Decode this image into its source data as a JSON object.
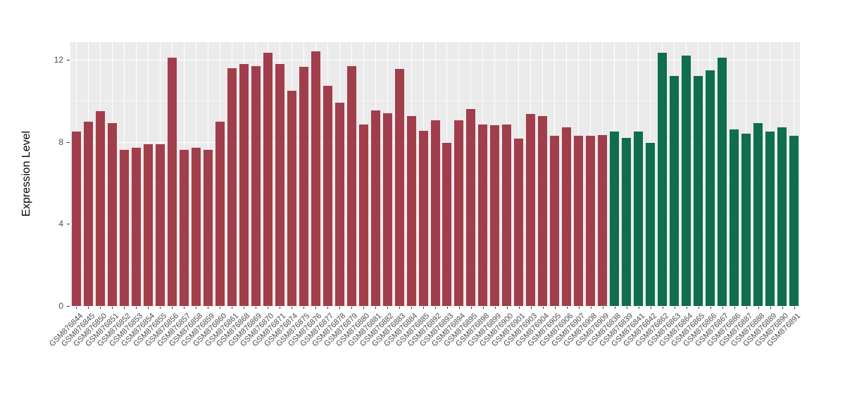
{
  "chart_data": {
    "type": "bar",
    "title": "",
    "xlabel": "",
    "ylabel": "Expression Level",
    "ylim": [
      0,
      12.86
    ],
    "yticks": [
      0,
      4,
      8,
      12
    ],
    "yticks_minor": [
      2,
      6,
      10
    ],
    "grid": true,
    "legend_position": "none",
    "panel_background": "#EBEBEB",
    "grid_color": "#FFFFFF",
    "tick_label_color": "#4D4D4D",
    "group_colors": {
      "red": "#A13E4C",
      "green": "#0E6E4D"
    },
    "bars": [
      {
        "label": "GSM876844",
        "value": 8.5,
        "group": "red"
      },
      {
        "label": "GSM876845",
        "value": 9.0,
        "group": "red"
      },
      {
        "label": "GSM876850",
        "value": 9.5,
        "group": "red"
      },
      {
        "label": "GSM876851",
        "value": 8.9,
        "group": "red"
      },
      {
        "label": "GSM876852",
        "value": 7.6,
        "group": "red"
      },
      {
        "label": "GSM876853",
        "value": 7.7,
        "group": "red"
      },
      {
        "label": "GSM876854",
        "value": 7.9,
        "group": "red"
      },
      {
        "label": "GSM876855",
        "value": 7.9,
        "group": "red"
      },
      {
        "label": "GSM876856",
        "value": 12.1,
        "group": "red"
      },
      {
        "label": "GSM876857",
        "value": 7.6,
        "group": "red"
      },
      {
        "label": "GSM876858",
        "value": 7.7,
        "group": "red"
      },
      {
        "label": "GSM876859",
        "value": 7.6,
        "group": "red"
      },
      {
        "label": "GSM876860",
        "value": 9.0,
        "group": "red"
      },
      {
        "label": "GSM876861",
        "value": 11.6,
        "group": "red"
      },
      {
        "label": "GSM876868",
        "value": 11.8,
        "group": "red"
      },
      {
        "label": "GSM876869",
        "value": 11.7,
        "group": "red"
      },
      {
        "label": "GSM876870",
        "value": 12.35,
        "group": "red"
      },
      {
        "label": "GSM876871",
        "value": 11.8,
        "group": "red"
      },
      {
        "label": "GSM876874",
        "value": 10.5,
        "group": "red"
      },
      {
        "label": "GSM876875",
        "value": 11.65,
        "group": "red"
      },
      {
        "label": "GSM876876",
        "value": 12.4,
        "group": "red"
      },
      {
        "label": "GSM876877",
        "value": 10.75,
        "group": "red"
      },
      {
        "label": "GSM876878",
        "value": 9.9,
        "group": "red"
      },
      {
        "label": "GSM876879",
        "value": 11.7,
        "group": "red"
      },
      {
        "label": "GSM876880",
        "value": 8.85,
        "group": "red"
      },
      {
        "label": "GSM876881",
        "value": 9.55,
        "group": "red"
      },
      {
        "label": "GSM876882",
        "value": 9.4,
        "group": "red"
      },
      {
        "label": "GSM876883",
        "value": 11.55,
        "group": "red"
      },
      {
        "label": "GSM876884",
        "value": 9.25,
        "group": "red"
      },
      {
        "label": "GSM876885",
        "value": 8.55,
        "group": "red"
      },
      {
        "label": "GSM876892",
        "value": 9.05,
        "group": "red"
      },
      {
        "label": "GSM876893",
        "value": 7.95,
        "group": "red"
      },
      {
        "label": "GSM876894",
        "value": 9.05,
        "group": "red"
      },
      {
        "label": "GSM876895",
        "value": 9.6,
        "group": "red"
      },
      {
        "label": "GSM876898",
        "value": 8.85,
        "group": "red"
      },
      {
        "label": "GSM876899",
        "value": 8.8,
        "group": "red"
      },
      {
        "label": "GSM876900",
        "value": 8.85,
        "group": "red"
      },
      {
        "label": "GSM876901",
        "value": 8.15,
        "group": "red"
      },
      {
        "label": "GSM876903",
        "value": 9.35,
        "group": "red"
      },
      {
        "label": "GSM876904",
        "value": 9.25,
        "group": "red"
      },
      {
        "label": "GSM876905",
        "value": 8.3,
        "group": "red"
      },
      {
        "label": "GSM876906",
        "value": 8.7,
        "group": "red"
      },
      {
        "label": "GSM876907",
        "value": 8.3,
        "group": "red"
      },
      {
        "label": "GSM876908",
        "value": 8.3,
        "group": "red"
      },
      {
        "label": "GSM876909",
        "value": 8.35,
        "group": "red"
      },
      {
        "label": "GSM876838",
        "value": 8.5,
        "group": "green"
      },
      {
        "label": "GSM876839",
        "value": 8.2,
        "group": "green"
      },
      {
        "label": "GSM876841",
        "value": 8.5,
        "group": "green"
      },
      {
        "label": "GSM876842",
        "value": 7.95,
        "group": "green"
      },
      {
        "label": "GSM876862",
        "value": 12.35,
        "group": "green"
      },
      {
        "label": "GSM876863",
        "value": 11.2,
        "group": "green"
      },
      {
        "label": "GSM876864",
        "value": 12.2,
        "group": "green"
      },
      {
        "label": "GSM876865",
        "value": 11.2,
        "group": "green"
      },
      {
        "label": "GSM876866",
        "value": 11.5,
        "group": "green"
      },
      {
        "label": "GSM876867",
        "value": 12.1,
        "group": "green"
      },
      {
        "label": "GSM876886",
        "value": 8.6,
        "group": "green"
      },
      {
        "label": "GSM876887",
        "value": 8.4,
        "group": "green"
      },
      {
        "label": "GSM876888",
        "value": 8.9,
        "group": "green"
      },
      {
        "label": "GSM876889",
        "value": 8.5,
        "group": "green"
      },
      {
        "label": "GSM876890",
        "value": 8.7,
        "group": "green"
      },
      {
        "label": "GSM876891",
        "value": 8.3,
        "group": "green"
      }
    ]
  }
}
